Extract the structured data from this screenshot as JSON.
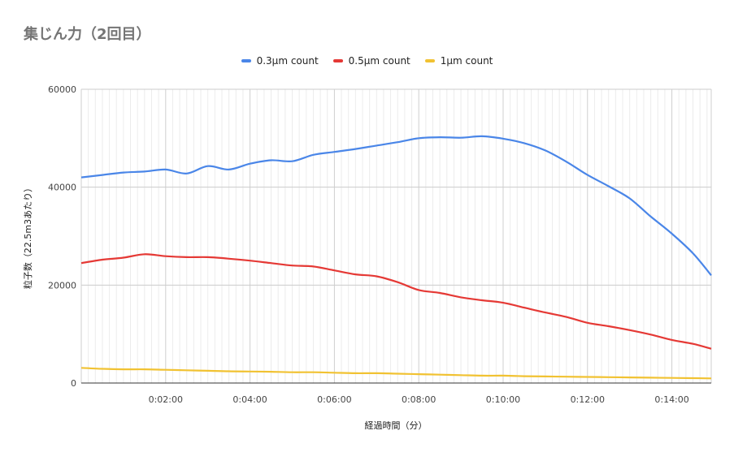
{
  "chart_data": {
    "type": "line",
    "title": "集じん力（2回目）",
    "xlabel": "経過時間（分）",
    "ylabel": "粒子数（22.5m3あたり）",
    "x_unit": "time (h:mm:ss)",
    "xlim": [
      "0:00:00",
      "0:14:56"
    ],
    "ylim": [
      0,
      60000
    ],
    "yticks": [
      0,
      20000,
      40000,
      60000
    ],
    "ytick_labels": [
      "0",
      "20000",
      "40000",
      "60000"
    ],
    "xticks": [
      "0:02:00",
      "0:04:00",
      "0:06:00",
      "0:08:00",
      "0:10:00",
      "0:12:00",
      "0:14:00"
    ],
    "grid": true,
    "legend_position": "top",
    "x": [
      "0:00:00",
      "0:00:30",
      "0:01:00",
      "0:01:30",
      "0:02:00",
      "0:02:30",
      "0:03:00",
      "0:03:30",
      "0:04:00",
      "0:04:30",
      "0:05:00",
      "0:05:30",
      "0:06:00",
      "0:06:30",
      "0:07:00",
      "0:07:30",
      "0:08:00",
      "0:08:30",
      "0:09:00",
      "0:09:30",
      "0:10:00",
      "0:10:30",
      "0:11:00",
      "0:11:30",
      "0:12:00",
      "0:12:30",
      "0:13:00",
      "0:13:30",
      "0:14:00",
      "0:14:30",
      "0:14:56"
    ],
    "series": [
      {
        "name": "0.3µm count",
        "color": "#4a86e8",
        "values": [
          42000,
          42500,
          43000,
          43200,
          43600,
          42800,
          44300,
          43600,
          44800,
          45500,
          45300,
          46600,
          47200,
          47800,
          48500,
          49200,
          50000,
          50200,
          50100,
          50400,
          49900,
          49000,
          47500,
          45200,
          42500,
          40200,
          37700,
          34000,
          30500,
          26500,
          22000
        ]
      },
      {
        "name": "0.5µm count",
        "color": "#e53935",
        "values": [
          24500,
          25200,
          25600,
          26300,
          25900,
          25700,
          25700,
          25400,
          25000,
          24500,
          24000,
          23800,
          23000,
          22200,
          21800,
          20600,
          19000,
          18400,
          17500,
          16900,
          16400,
          15400,
          14400,
          13500,
          12300,
          11600,
          10800,
          9900,
          8800,
          8000,
          7000
        ]
      },
      {
        "name": "1µm count",
        "color": "#f1c232",
        "values": [
          3100,
          2900,
          2800,
          2800,
          2700,
          2600,
          2500,
          2400,
          2350,
          2300,
          2200,
          2200,
          2100,
          2000,
          2000,
          1900,
          1800,
          1700,
          1600,
          1500,
          1500,
          1400,
          1350,
          1300,
          1250,
          1200,
          1150,
          1100,
          1050,
          1000,
          950
        ]
      }
    ]
  }
}
